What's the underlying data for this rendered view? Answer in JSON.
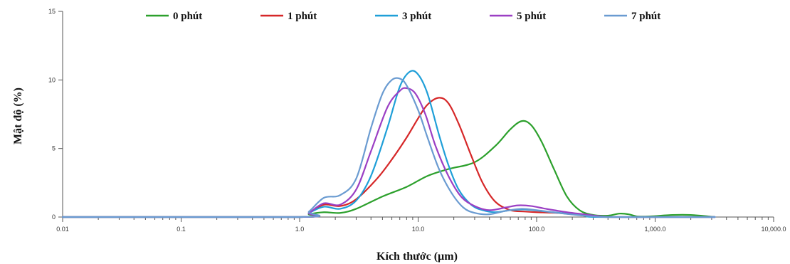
{
  "chart_data": {
    "type": "line",
    "xlabel": "Kích thước (µm)",
    "ylabel": "Mật độ (%)",
    "xscale": "log",
    "xlim": [
      0.01,
      10000
    ],
    "ylim": [
      0,
      15
    ],
    "xticks": [
      {
        "value": 0.01,
        "label": "0.01"
      },
      {
        "value": 0.1,
        "label": "0.1"
      },
      {
        "value": 1,
        "label": "1.0"
      },
      {
        "value": 10,
        "label": "10.0"
      },
      {
        "value": 100,
        "label": "100.0"
      },
      {
        "value": 1000,
        "label": "1,000.0"
      },
      {
        "value": 10000,
        "label": "10,000.0"
      }
    ],
    "yticks": [
      {
        "value": 0,
        "label": "0"
      },
      {
        "value": 5,
        "label": "5"
      },
      {
        "value": 10,
        "label": "10"
      },
      {
        "value": 15,
        "label": "15"
      }
    ],
    "grid": false,
    "legend_position": "top",
    "series": [
      {
        "name": "0 phút",
        "color": "#2ca02c",
        "points": [
          [
            0.01,
            0
          ],
          [
            1,
            0
          ],
          [
            1.2,
            0.2
          ],
          [
            1.6,
            0.35
          ],
          [
            2.2,
            0.3
          ],
          [
            3,
            0.6
          ],
          [
            5,
            1.5
          ],
          [
            8,
            2.2
          ],
          [
            12,
            3.0
          ],
          [
            18,
            3.5
          ],
          [
            30,
            4.0
          ],
          [
            45,
            5.2
          ],
          [
            60,
            6.4
          ],
          [
            75,
            7.0
          ],
          [
            90,
            6.7
          ],
          [
            110,
            5.5
          ],
          [
            140,
            3.5
          ],
          [
            180,
            1.5
          ],
          [
            230,
            0.5
          ],
          [
            300,
            0.15
          ],
          [
            400,
            0.1
          ],
          [
            500,
            0.25
          ],
          [
            600,
            0.2
          ],
          [
            700,
            0.05
          ],
          [
            900,
            0.05
          ],
          [
            1400,
            0.15
          ],
          [
            2000,
            0.15
          ],
          [
            3200,
            0.0
          ]
        ]
      },
      {
        "name": "1 phút",
        "color": "#d62728",
        "points": [
          [
            0.01,
            0
          ],
          [
            1,
            0
          ],
          [
            1.2,
            0.3
          ],
          [
            1.6,
            0.9
          ],
          [
            2.2,
            0.8
          ],
          [
            3,
            1.3
          ],
          [
            4.5,
            2.8
          ],
          [
            6,
            4.2
          ],
          [
            8,
            5.8
          ],
          [
            10,
            7.2
          ],
          [
            12,
            8.2
          ],
          [
            15,
            8.7
          ],
          [
            18,
            8.3
          ],
          [
            22,
            6.8
          ],
          [
            28,
            4.5
          ],
          [
            35,
            2.5
          ],
          [
            45,
            1.1
          ],
          [
            60,
            0.5
          ],
          [
            80,
            0.4
          ],
          [
            100,
            0.35
          ],
          [
            150,
            0.3
          ],
          [
            200,
            0.2
          ],
          [
            300,
            0.1
          ],
          [
            400,
            0.0
          ],
          [
            3200,
            0.0
          ]
        ]
      },
      {
        "name": "3 phút",
        "color": "#1f9fd8",
        "points": [
          [
            0.01,
            0
          ],
          [
            1,
            0
          ],
          [
            1.2,
            0.3
          ],
          [
            1.6,
            0.75
          ],
          [
            2.2,
            0.6
          ],
          [
            3,
            1.2
          ],
          [
            4,
            3.0
          ],
          [
            5.5,
            6.5
          ],
          [
            7,
            9.5
          ],
          [
            8.5,
            10.6
          ],
          [
            10,
            10.4
          ],
          [
            12,
            9.0
          ],
          [
            15,
            6.0
          ],
          [
            18,
            3.8
          ],
          [
            22,
            2.0
          ],
          [
            28,
            0.9
          ],
          [
            35,
            0.5
          ],
          [
            45,
            0.35
          ],
          [
            60,
            0.5
          ],
          [
            80,
            0.55
          ],
          [
            120,
            0.4
          ],
          [
            180,
            0.25
          ],
          [
            250,
            0.1
          ],
          [
            350,
            0.0
          ],
          [
            3200,
            0.0
          ]
        ]
      },
      {
        "name": "5 phút",
        "color": "#9b3fc4",
        "points": [
          [
            0.01,
            0
          ],
          [
            1,
            0
          ],
          [
            1.2,
            0.3
          ],
          [
            1.6,
            1.0
          ],
          [
            2.2,
            0.9
          ],
          [
            3,
            2.0
          ],
          [
            4,
            4.8
          ],
          [
            5.5,
            8.0
          ],
          [
            7,
            9.2
          ],
          [
            8,
            9.4
          ],
          [
            9.5,
            9.0
          ],
          [
            11.5,
            7.5
          ],
          [
            14,
            5.2
          ],
          [
            18,
            3.0
          ],
          [
            23,
            1.5
          ],
          [
            30,
            0.8
          ],
          [
            40,
            0.5
          ],
          [
            55,
            0.7
          ],
          [
            70,
            0.85
          ],
          [
            90,
            0.8
          ],
          [
            120,
            0.6
          ],
          [
            180,
            0.35
          ],
          [
            250,
            0.2
          ],
          [
            350,
            0.05
          ],
          [
            500,
            0.0
          ],
          [
            3200,
            0.0
          ]
        ]
      },
      {
        "name": "7 phút",
        "color": "#6a9bd1",
        "points": [
          [
            0.01,
            0
          ],
          [
            1,
            0
          ],
          [
            1.2,
            0.4
          ],
          [
            1.6,
            1.4
          ],
          [
            2.2,
            1.6
          ],
          [
            3,
            2.8
          ],
          [
            4,
            6.5
          ],
          [
            5,
            9.0
          ],
          [
            6,
            10.0
          ],
          [
            7,
            10.1
          ],
          [
            8,
            9.6
          ],
          [
            10,
            7.8
          ],
          [
            12,
            5.8
          ],
          [
            15,
            3.5
          ],
          [
            19,
            1.8
          ],
          [
            24,
            0.7
          ],
          [
            30,
            0.3
          ],
          [
            40,
            0.2
          ],
          [
            55,
            0.45
          ],
          [
            75,
            0.6
          ],
          [
            100,
            0.5
          ],
          [
            150,
            0.3
          ],
          [
            220,
            0.15
          ],
          [
            300,
            0.05
          ],
          [
            450,
            0.0
          ],
          [
            3200,
            0.0
          ]
        ]
      }
    ]
  }
}
